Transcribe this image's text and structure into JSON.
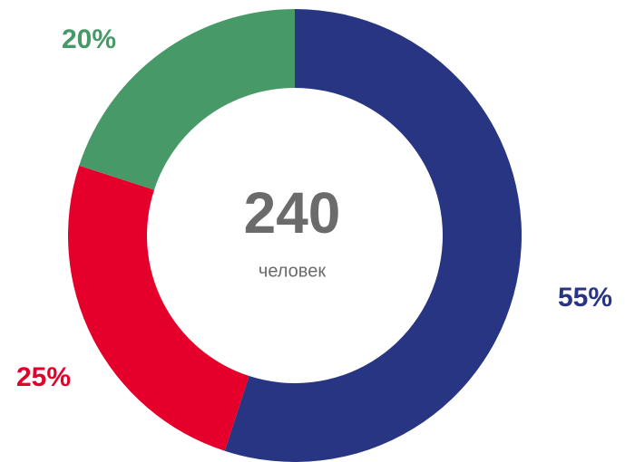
{
  "chart_data": {
    "type": "donut",
    "values": [
      55,
      25,
      20
    ],
    "value_labels": [
      "55%",
      "25%",
      "20%"
    ],
    "colors": [
      "#283583",
      "#e4002b",
      "#479a68"
    ],
    "total": 240,
    "total_caption": "человек"
  }
}
